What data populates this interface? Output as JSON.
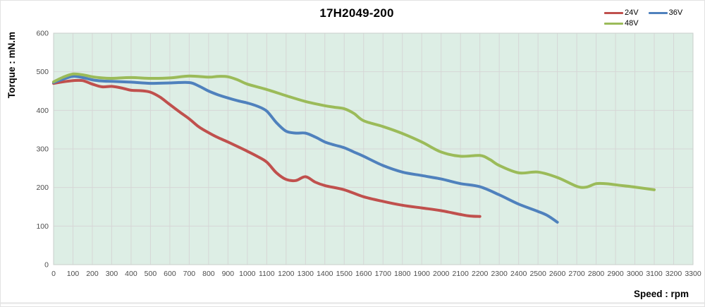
{
  "chart_data": {
    "type": "line",
    "title": "17H2049-200",
    "xlabel": "Speed : rpm",
    "ylabel": "Torque : mN.m",
    "xlim": [
      0,
      3300
    ],
    "ylim": [
      0,
      600
    ],
    "x_ticks": [
      0,
      100,
      200,
      300,
      400,
      500,
      600,
      700,
      800,
      900,
      1000,
      1100,
      1200,
      1300,
      1400,
      1500,
      1600,
      1700,
      1800,
      1900,
      2000,
      2100,
      2200,
      2300,
      2400,
      2500,
      2600,
      2700,
      2800,
      2900,
      3000,
      3100,
      3200,
      3300
    ],
    "y_ticks": [
      0,
      100,
      200,
      300,
      400,
      500,
      600
    ],
    "grid": true,
    "legend_position": "top-right",
    "colors": {
      "plot_background": "#ddeee5",
      "grid_line": "#d6d6d6",
      "plot_border": "#c9cfcb",
      "tick_text": "#4d4d4d"
    },
    "series": [
      {
        "name": "24V",
        "color": "#C0504D",
        "points": [
          [
            0,
            470
          ],
          [
            50,
            474
          ],
          [
            100,
            477
          ],
          [
            150,
            477
          ],
          [
            200,
            468
          ],
          [
            250,
            461
          ],
          [
            300,
            462
          ],
          [
            350,
            458
          ],
          [
            400,
            452
          ],
          [
            450,
            451
          ],
          [
            500,
            447
          ],
          [
            550,
            434
          ],
          [
            600,
            415
          ],
          [
            650,
            396
          ],
          [
            700,
            378
          ],
          [
            750,
            357
          ],
          [
            800,
            342
          ],
          [
            850,
            329
          ],
          [
            900,
            318
          ],
          [
            950,
            306
          ],
          [
            1000,
            294
          ],
          [
            1050,
            281
          ],
          [
            1100,
            266
          ],
          [
            1150,
            238
          ],
          [
            1200,
            221
          ],
          [
            1250,
            218
          ],
          [
            1300,
            228
          ],
          [
            1350,
            214
          ],
          [
            1400,
            205
          ],
          [
            1500,
            194
          ],
          [
            1600,
            176
          ],
          [
            1700,
            164
          ],
          [
            1800,
            154
          ],
          [
            1900,
            147
          ],
          [
            2000,
            140
          ],
          [
            2100,
            130
          ],
          [
            2150,
            126
          ],
          [
            2200,
            125
          ]
        ]
      },
      {
        "name": "36V",
        "color": "#4F81BD",
        "points": [
          [
            0,
            472
          ],
          [
            50,
            481
          ],
          [
            100,
            488
          ],
          [
            150,
            485
          ],
          [
            200,
            479
          ],
          [
            250,
            476
          ],
          [
            300,
            475
          ],
          [
            400,
            473
          ],
          [
            500,
            470
          ],
          [
            600,
            471
          ],
          [
            700,
            472
          ],
          [
            750,
            463
          ],
          [
            800,
            450
          ],
          [
            850,
            440
          ],
          [
            900,
            432
          ],
          [
            950,
            425
          ],
          [
            1000,
            419
          ],
          [
            1050,
            411
          ],
          [
            1100,
            398
          ],
          [
            1150,
            368
          ],
          [
            1200,
            346
          ],
          [
            1250,
            341
          ],
          [
            1300,
            341
          ],
          [
            1350,
            331
          ],
          [
            1400,
            318
          ],
          [
            1450,
            310
          ],
          [
            1500,
            303
          ],
          [
            1550,
            292
          ],
          [
            1600,
            281
          ],
          [
            1700,
            257
          ],
          [
            1800,
            240
          ],
          [
            1900,
            231
          ],
          [
            2000,
            222
          ],
          [
            2100,
            210
          ],
          [
            2200,
            202
          ],
          [
            2300,
            181
          ],
          [
            2400,
            157
          ],
          [
            2500,
            138
          ],
          [
            2550,
            127
          ],
          [
            2600,
            110
          ]
        ]
      },
      {
        "name": "48V",
        "color": "#9BBB59",
        "points": [
          [
            0,
            474
          ],
          [
            50,
            486
          ],
          [
            100,
            494
          ],
          [
            150,
            492
          ],
          [
            200,
            487
          ],
          [
            250,
            484
          ],
          [
            300,
            483
          ],
          [
            400,
            485
          ],
          [
            500,
            483
          ],
          [
            600,
            484
          ],
          [
            700,
            489
          ],
          [
            800,
            486
          ],
          [
            850,
            488
          ],
          [
            900,
            487
          ],
          [
            950,
            479
          ],
          [
            1000,
            468
          ],
          [
            1100,
            454
          ],
          [
            1200,
            438
          ],
          [
            1300,
            423
          ],
          [
            1400,
            412
          ],
          [
            1450,
            408
          ],
          [
            1500,
            404
          ],
          [
            1550,
            392
          ],
          [
            1600,
            373
          ],
          [
            1700,
            358
          ],
          [
            1800,
            340
          ],
          [
            1900,
            318
          ],
          [
            2000,
            292
          ],
          [
            2100,
            281
          ],
          [
            2200,
            283
          ],
          [
            2250,
            273
          ],
          [
            2300,
            257
          ],
          [
            2400,
            238
          ],
          [
            2500,
            240
          ],
          [
            2600,
            226
          ],
          [
            2700,
            203
          ],
          [
            2750,
            201
          ],
          [
            2800,
            210
          ],
          [
            2850,
            210
          ],
          [
            2900,
            207
          ],
          [
            3000,
            201
          ],
          [
            3100,
            194
          ]
        ]
      }
    ]
  }
}
